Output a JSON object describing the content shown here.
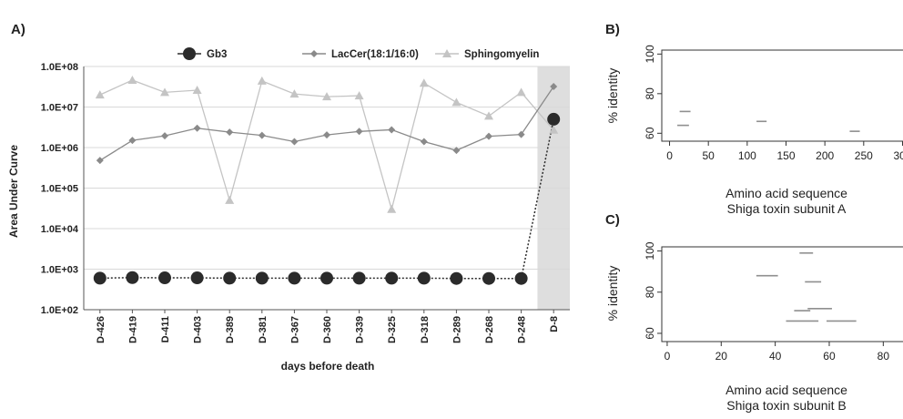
{
  "colors": {
    "gb3": "#2b2b2b",
    "laccer": "#8a8a8a",
    "sphingomyelin": "#c4c4c4",
    "grid": "#d9d9d9",
    "shade": "#dedede",
    "segment": "#8f8f8f",
    "axis": "#333333"
  },
  "chart_data": [
    {
      "panel_label": "A)",
      "type": "line",
      "xlabel": "days before death",
      "ylabel": "Area Under Curve",
      "yscale": "log",
      "ylim": [
        100,
        100000000
      ],
      "yticks": [
        "1.0E+02",
        "1.0E+03",
        "1.0E+04",
        "1.0E+05",
        "1.0E+06",
        "1.0E+07",
        "1.0E+08"
      ],
      "categories": [
        "D-426",
        "D-419",
        "D-411",
        "D-403",
        "D-389",
        "D-381",
        "D-367",
        "D-360",
        "D-339",
        "D-325",
        "D-318",
        "D-289",
        "D-268",
        "D-248",
        "D-8"
      ],
      "highlighted_category": "D-8",
      "grid": true,
      "legend_position": "top",
      "series": [
        {
          "name": "Gb3",
          "marker": "circle",
          "values": [
            600,
            620,
            610,
            610,
            600,
            600,
            600,
            600,
            600,
            600,
            600,
            590,
            590,
            590,
            5000000
          ]
        },
        {
          "name": "LacCer(18:1/16:0)",
          "marker": "diamond",
          "values": [
            480000,
            1500000,
            1950000,
            3000000,
            2400000,
            2000000,
            1400000,
            2050000,
            2500000,
            2750000,
            1400000,
            850000,
            1900000,
            2100000,
            32000000
          ]
        },
        {
          "name": "Sphingomyelin",
          "marker": "triangle",
          "values": [
            20000000,
            46000000,
            23000000,
            26000000,
            50000,
            44000000,
            21000000,
            18000000,
            19000000,
            30000,
            39000000,
            13000000,
            6000000,
            23000000,
            2700000
          ]
        }
      ]
    },
    {
      "panel_label": "B)",
      "type": "segment",
      "title": "",
      "xlabel": "Amino acid sequence",
      "xlabel2": "Shiga toxin subunit A",
      "ylabel": "% identity",
      "xlim": [
        -10,
        310
      ],
      "ylim": [
        56,
        102
      ],
      "xticks": [
        "0",
        "50",
        "100",
        "150",
        "200",
        "250",
        "300"
      ],
      "yticks": [
        "60",
        "80",
        "100"
      ],
      "segments": [
        {
          "x_start": 13,
          "x_end": 27,
          "y": 71
        },
        {
          "x_start": 10,
          "x_end": 25,
          "y": 64
        },
        {
          "x_start": 112,
          "x_end": 125,
          "y": 66
        },
        {
          "x_start": 232,
          "x_end": 245,
          "y": 61
        }
      ]
    },
    {
      "panel_label": "C)",
      "type": "segment",
      "title": "",
      "xlabel": "Amino acid sequence",
      "xlabel2": "Shiga toxin subunit B",
      "ylabel": "% identity",
      "xlim": [
        -2,
        90
      ],
      "ylim": [
        56,
        102
      ],
      "xticks": [
        "0",
        "20",
        "40",
        "60",
        "80"
      ],
      "yticks": [
        "60",
        "80",
        "100"
      ],
      "segments": [
        {
          "x_start": 49,
          "x_end": 54,
          "y": 99
        },
        {
          "x_start": 33,
          "x_end": 41,
          "y": 88
        },
        {
          "x_start": 51,
          "x_end": 57,
          "y": 85
        },
        {
          "x_start": 52,
          "x_end": 61,
          "y": 72
        },
        {
          "x_start": 47,
          "x_end": 53,
          "y": 71
        },
        {
          "x_start": 44,
          "x_end": 56,
          "y": 66
        },
        {
          "x_start": 59,
          "x_end": 70,
          "y": 66
        }
      ]
    }
  ]
}
